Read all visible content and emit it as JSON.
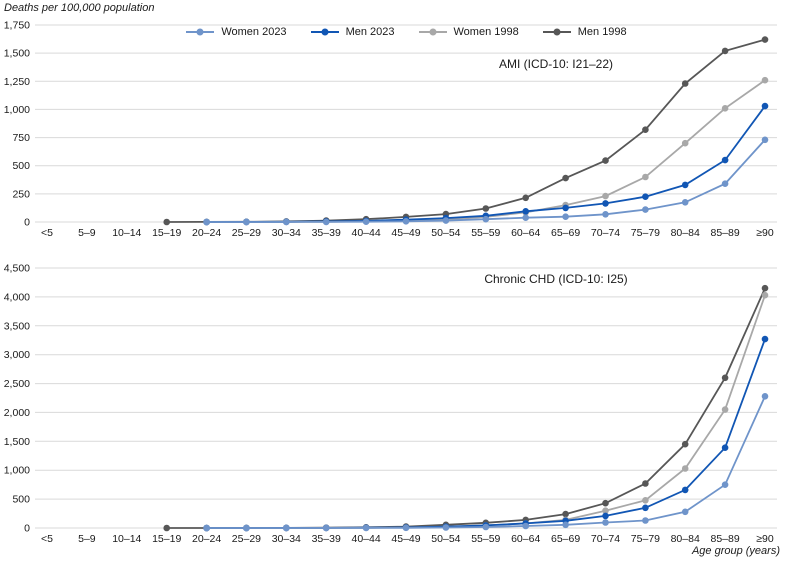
{
  "axes": {
    "y_title": "Deaths per 100,000 population",
    "x_title": "Age group (years)"
  },
  "legend": {
    "position": "top"
  },
  "colors": {
    "women_2023": "#6f94ca",
    "men_2023": "#1156b4",
    "women_1998": "#a8a8a8",
    "men_1998": "#575757",
    "gridline": "#d9d9d9",
    "text": "#1a1a1a"
  },
  "chart_data": [
    {
      "type": "line",
      "title": "AMI (ICD-10: I21–22)",
      "xlabel": "Age group (years)",
      "ylabel": "Deaths per 100,000 population",
      "ylim": [
        0,
        1750
      ],
      "ytick_step": 250,
      "grid": "horizontal",
      "legend_position": "top",
      "categories": [
        "<5",
        "5–9",
        "10–14",
        "15–19",
        "20–24",
        "25–29",
        "30–34",
        "35–39",
        "40–44",
        "45–49",
        "50–54",
        "55–59",
        "60–64",
        "65–69",
        "70–74",
        "75–79",
        "80–84",
        "85–89",
        "≥90"
      ],
      "series": [
        {
          "name": "Women 2023",
          "color": "#6f94ca",
          "values": [
            null,
            null,
            null,
            null,
            0,
            0,
            1,
            1,
            3,
            6,
            12,
            25,
            38,
            47,
            68,
            110,
            175,
            340,
            730
          ]
        },
        {
          "name": "Men 2023",
          "color": "#1156b4",
          "values": [
            null,
            null,
            null,
            null,
            0,
            1,
            2,
            5,
            10,
            20,
            35,
            55,
            95,
            125,
            165,
            225,
            330,
            550,
            1030
          ]
        },
        {
          "name": "Women 1998",
          "color": "#a8a8a8",
          "values": [
            null,
            null,
            null,
            null,
            0,
            0,
            1,
            2,
            5,
            10,
            20,
            45,
            85,
            150,
            230,
            400,
            700,
            1010,
            1260
          ]
        },
        {
          "name": "Men 1998",
          "color": "#575757",
          "values": [
            null,
            null,
            null,
            0,
            1,
            2,
            5,
            12,
            25,
            45,
            70,
            120,
            215,
            390,
            545,
            820,
            1230,
            1520,
            1620
          ]
        }
      ]
    },
    {
      "type": "line",
      "title": "Chronic CHD (ICD-10: I25)",
      "xlabel": "Age group (years)",
      "ylabel": "Deaths per 100,000 population",
      "ylim": [
        0,
        4500
      ],
      "ytick_step": 500,
      "grid": "horizontal",
      "legend_position": "top",
      "categories": [
        "<5",
        "5–9",
        "10–14",
        "15–19",
        "20–24",
        "25–29",
        "30–34",
        "35–39",
        "40–44",
        "45–49",
        "50–54",
        "55–59",
        "60–64",
        "65–69",
        "70–74",
        "75–79",
        "80–84",
        "85–89",
        "≥90"
      ],
      "series": [
        {
          "name": "Women 2023",
          "color": "#6f94ca",
          "values": [
            null,
            null,
            null,
            null,
            0,
            0,
            0,
            1,
            2,
            4,
            8,
            18,
            35,
            55,
            95,
            130,
            280,
            750,
            2280
          ]
        },
        {
          "name": "Men 2023",
          "color": "#1156b4",
          "values": [
            null,
            null,
            null,
            null,
            0,
            0,
            1,
            2,
            5,
            10,
            22,
            45,
            80,
            125,
            210,
            350,
            660,
            1390,
            3270
          ]
        },
        {
          "name": "Women 1998",
          "color": "#a8a8a8",
          "values": [
            null,
            null,
            null,
            null,
            0,
            0,
            1,
            2,
            4,
            8,
            20,
            45,
            80,
            140,
            300,
            480,
            1030,
            2050,
            4030
          ]
        },
        {
          "name": "Men 1998",
          "color": "#575757",
          "values": [
            null,
            null,
            null,
            0,
            0,
            1,
            2,
            5,
            12,
            25,
            55,
            90,
            140,
            240,
            430,
            770,
            1450,
            2600,
            4150
          ]
        }
      ]
    }
  ]
}
